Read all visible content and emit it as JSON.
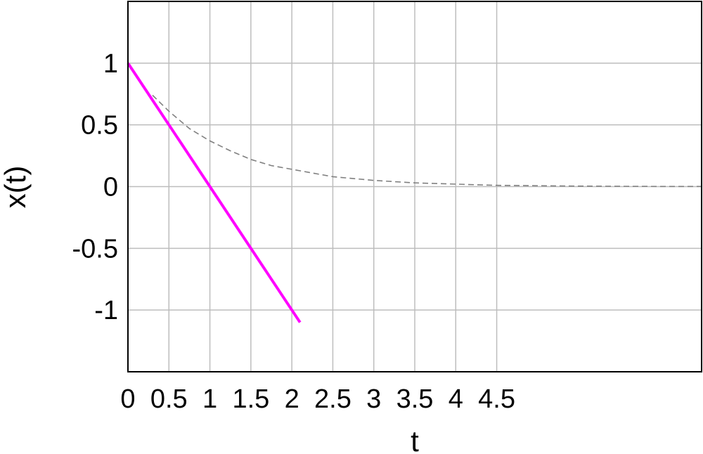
{
  "chart_data": {
    "type": "line",
    "xlabel": "t",
    "ylabel": "x(t)",
    "xlim": [
      0,
      7
    ],
    "ylim": [
      -1.5,
      1.5
    ],
    "xticks": [
      0,
      0.5,
      1,
      1.5,
      2,
      2.5,
      3,
      3.5,
      4,
      4.5
    ],
    "xtick_labels": [
      "0",
      "0.5",
      "1",
      "1.5",
      "2",
      "2.5",
      "3",
      "3.5",
      "4",
      "4.5"
    ],
    "yticks": [
      1,
      0.5,
      0,
      -0.5,
      -1
    ],
    "ytick_labels": [
      "1",
      "0.5",
      "0",
      "-0.5",
      "-1"
    ],
    "grid": true,
    "series": [
      {
        "style": "solid",
        "color": "#ff00ff",
        "x": [
          0,
          2.1
        ],
        "y": [
          1,
          -1.1
        ]
      },
      {
        "style": "dashed",
        "color": "#808080",
        "x": [
          0.3,
          0.5,
          0.75,
          1,
          1.25,
          1.5,
          1.75,
          2,
          2.5,
          3,
          3.5,
          4,
          4.5,
          5,
          5.5,
          6,
          6.5,
          7
        ],
        "y": [
          0.74,
          0.61,
          0.47,
          0.37,
          0.29,
          0.22,
          0.17,
          0.14,
          0.08,
          0.05,
          0.03,
          0.02,
          0.01,
          0.007,
          0.004,
          0.002,
          0.001,
          0.001
        ]
      }
    ]
  }
}
